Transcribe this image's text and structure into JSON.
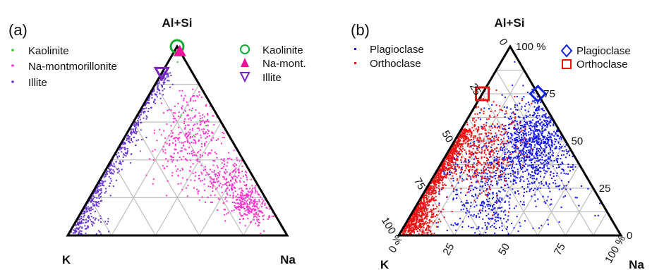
{
  "chart_data": [
    {
      "type": "scatter",
      "subtype": "ternary",
      "panel_label": "(a)",
      "title": "",
      "vertex_labels": {
        "top": "Al+Si",
        "left": "K",
        "right": "Na"
      },
      "grid": true,
      "grid_step": 0.2,
      "axis_ticks": false,
      "legend_scatter": {
        "placement": "top-left",
        "entries": [
          "Kaolinite",
          "Na-montmorillonite",
          "Illite"
        ]
      },
      "legend_markers": {
        "placement": "top-right",
        "entries": [
          "Kaolinite",
          "Na-mont.",
          "Illite"
        ]
      },
      "series": [
        {
          "name": "Kaolinite",
          "color": "#22cc22",
          "marker": "dot",
          "clusters": [
            {
              "top": 0.99,
              "left": 0.004,
              "right": 0.006,
              "spread": 0.03,
              "count": 22
            },
            {
              "top": 0.6,
              "left": 0.15,
              "right": 0.25,
              "spread": 0.06,
              "count": 6
            }
          ]
        },
        {
          "name": "Na-montmorillonite",
          "color": "#ff33cc",
          "marker": "dot",
          "clusters": [
            {
              "top": 0.6,
              "left": 0.1,
              "right": 0.3,
              "spread": 0.12,
              "count": 220
            },
            {
              "top": 0.28,
              "left": 0.12,
              "right": 0.6,
              "spread": 0.1,
              "count": 280
            },
            {
              "top": 0.16,
              "left": 0.09,
              "right": 0.75,
              "spread": 0.05,
              "count": 250
            },
            {
              "top": 0.45,
              "left": 0.25,
              "right": 0.3,
              "spread": 0.12,
              "count": 160
            }
          ]
        },
        {
          "name": "Illite",
          "color": "#6633cc",
          "marker": "dot",
          "clusters": [
            {
              "top": 0.3,
              "left": 0.68,
              "right": 0.02,
              "spread": 0.22,
              "count": 700,
              "edge": "left"
            },
            {
              "top": 0.06,
              "left": 0.88,
              "right": 0.06,
              "spread": 0.05,
              "count": 60
            }
          ]
        }
      ],
      "reference_points": [
        {
          "name": "Kaolinite",
          "color": "#11aa33",
          "marker": "circle",
          "top": 1.0,
          "left": 0.0,
          "right": 0.0
        },
        {
          "name": "Na-mont.",
          "color": "#ee1199",
          "marker": "triangle-up",
          "top": 0.975,
          "left": 0.0,
          "right": 0.025
        },
        {
          "name": "Illite",
          "color": "#7722bb",
          "marker": "triangle-down",
          "top": 0.86,
          "left": 0.14,
          "right": 0.0
        }
      ]
    },
    {
      "type": "scatter",
      "subtype": "ternary",
      "panel_label": "(b)",
      "title": "",
      "vertex_labels": {
        "top": "Al+Si",
        "left": "K",
        "right": "Na"
      },
      "grid": true,
      "grid_step": 0.125,
      "axis_ticks": {
        "left_edge": [
          "0",
          "25",
          "50",
          "75",
          "100 %"
        ],
        "right_edge": [
          "100 %",
          "75",
          "50",
          "25",
          "0"
        ],
        "bottom_edge": [
          "0",
          "25",
          "50",
          "75",
          "100 %"
        ]
      },
      "legend_scatter": {
        "placement": "top-left",
        "entries": [
          "Plagioclase",
          "Orthoclase"
        ]
      },
      "legend_markers": {
        "placement": "top-right",
        "entries": [
          "Plagioclase",
          "Orthoclase"
        ]
      },
      "series": [
        {
          "name": "Plagioclase",
          "color": "#1111ee",
          "marker": "dot",
          "clusters": [
            {
              "top": 0.55,
              "left": 0.1,
              "right": 0.35,
              "spread": 0.12,
              "count": 650
            },
            {
              "top": 0.4,
              "left": 0.2,
              "right": 0.4,
              "spread": 0.15,
              "count": 550
            },
            {
              "top": 0.12,
              "left": 0.55,
              "right": 0.33,
              "spread": 0.1,
              "count": 180
            },
            {
              "top": 0.3,
              "left": 0.5,
              "right": 0.2,
              "spread": 0.15,
              "count": 250
            }
          ]
        },
        {
          "name": "Orthoclase",
          "color": "#ee1111",
          "marker": "dot",
          "clusters": [
            {
              "top": 0.25,
              "left": 0.72,
              "right": 0.03,
              "spread": 0.12,
              "count": 1100,
              "edge": "left"
            },
            {
              "top": 0.55,
              "left": 0.4,
              "right": 0.05,
              "spread": 0.15,
              "count": 350
            },
            {
              "top": 0.4,
              "left": 0.45,
              "right": 0.15,
              "spread": 0.12,
              "count": 280
            },
            {
              "top": 0.06,
              "left": 0.88,
              "right": 0.06,
              "spread": 0.05,
              "count": 300
            }
          ]
        }
      ],
      "reference_points": [
        {
          "name": "Plagioclase",
          "color": "#1122dd",
          "marker": "diamond",
          "top": 0.75,
          "left": 0.0,
          "right": 0.25
        },
        {
          "name": "Orthoclase",
          "color": "#ee1111",
          "marker": "square",
          "top": 0.75,
          "left": 0.25,
          "right": 0.0
        }
      ]
    }
  ]
}
